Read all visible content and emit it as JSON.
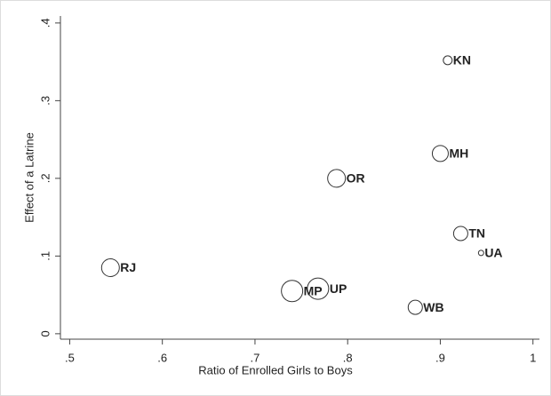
{
  "chart_data": {
    "type": "scatter",
    "x_label": "Ratio of Enrolled Girls to Boys",
    "y_label": "Effect of a Latrine",
    "labels": [
      "KN",
      "MH",
      "OR",
      "TN",
      "UA",
      "RJ",
      "UP",
      "MP",
      "WB"
    ],
    "x": [
      0.908,
      0.9,
      0.788,
      0.922,
      0.944,
      0.544,
      0.768,
      0.74,
      0.873
    ],
    "values": [
      0.352,
      0.232,
      0.2,
      0.129,
      0.104,
      0.085,
      0.058,
      0.055,
      0.034
    ],
    "sizes": [
      25,
      81,
      100,
      64,
      9,
      100,
      144,
      144,
      64
    ],
    "color": "#333333",
    "xlim": [
      0.49,
      1.007
    ],
    "ylim": [
      -0.007,
      0.409
    ],
    "xticks": [
      {
        "value": 0.5,
        "label": ".5"
      },
      {
        "value": 0.6,
        "label": ".6"
      },
      {
        "value": 0.7,
        "label": ".7"
      },
      {
        "value": 0.8,
        "label": ".8"
      },
      {
        "value": 0.9,
        "label": ".9"
      },
      1
    ],
    "yticks": [
      0,
      {
        "value": 0.1,
        "label": ".1"
      },
      {
        "value": 0.2,
        "label": ".2"
      },
      {
        "value": 0.3,
        "label": ".3"
      },
      {
        "value": 0.4,
        "label": ".4"
      }
    ],
    "grid": false
  }
}
